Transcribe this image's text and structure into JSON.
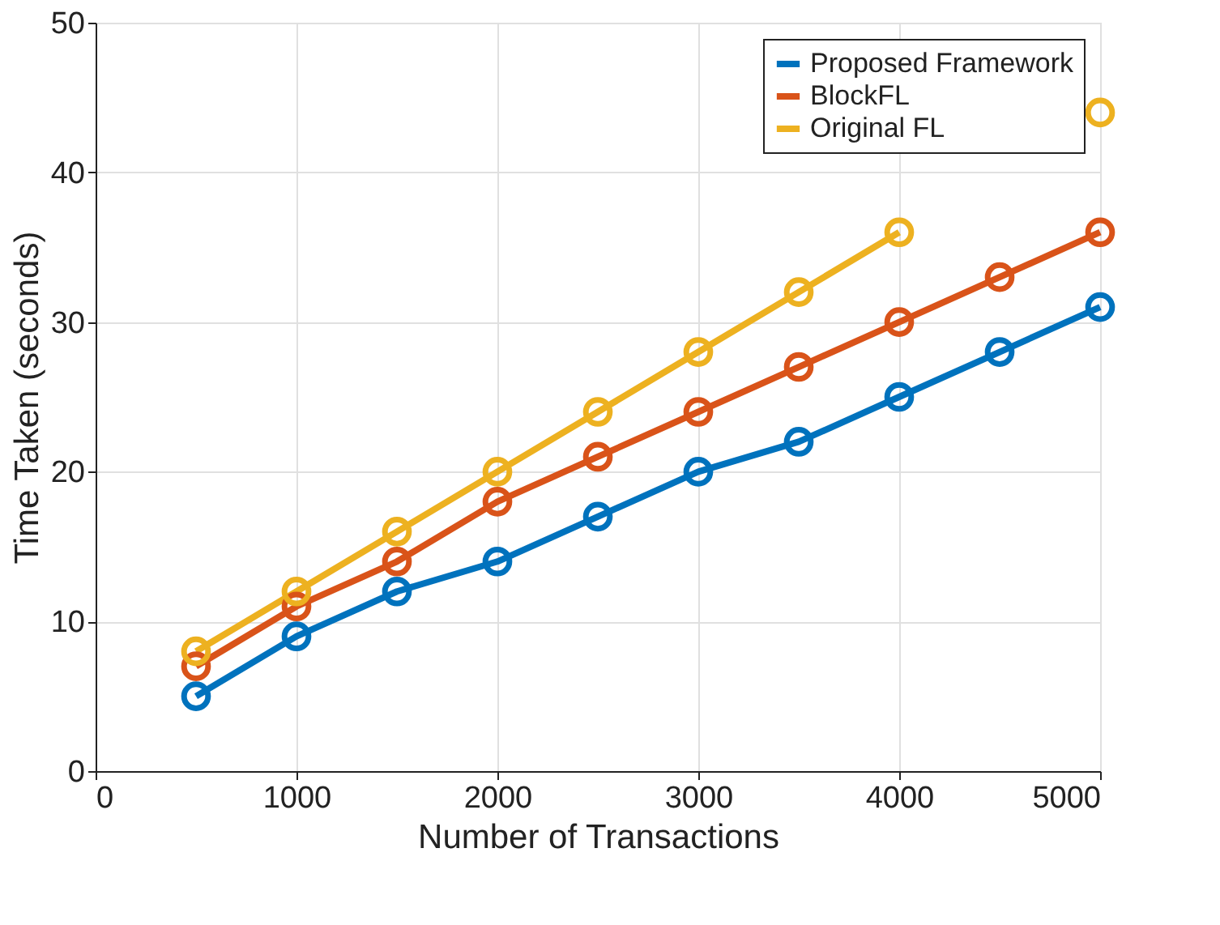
{
  "chart_data": {
    "type": "line",
    "xlabel": "Number of Transactions",
    "ylabel": "Time Taken (seconds)",
    "x": [
      500,
      1000,
      1500,
      2000,
      2500,
      3000,
      3500,
      4000,
      4500,
      5000
    ],
    "series": [
      {
        "name": "Proposed Framework",
        "color": "#0072bd",
        "values": [
          5,
          9,
          12,
          14,
          17,
          20,
          22,
          25,
          28,
          31
        ]
      },
      {
        "name": "BlockFL",
        "color": "#d95319",
        "values": [
          7,
          11,
          14,
          18,
          21,
          24,
          27,
          30,
          33,
          36
        ]
      },
      {
        "name": "Original FL",
        "color": "#edb120",
        "values": [
          8,
          12,
          16,
          20,
          24,
          28,
          32,
          36,
          null,
          44
        ]
      }
    ],
    "xlim": [
      0,
      5000
    ],
    "xticks": [
      0,
      1000,
      2000,
      3000,
      4000,
      5000
    ],
    "ylim": [
      0,
      50
    ],
    "yticks": [
      0,
      10,
      20,
      30,
      40,
      50
    ],
    "grid": true,
    "legend": "top right",
    "marker": "circle",
    "line_style": "solid"
  }
}
